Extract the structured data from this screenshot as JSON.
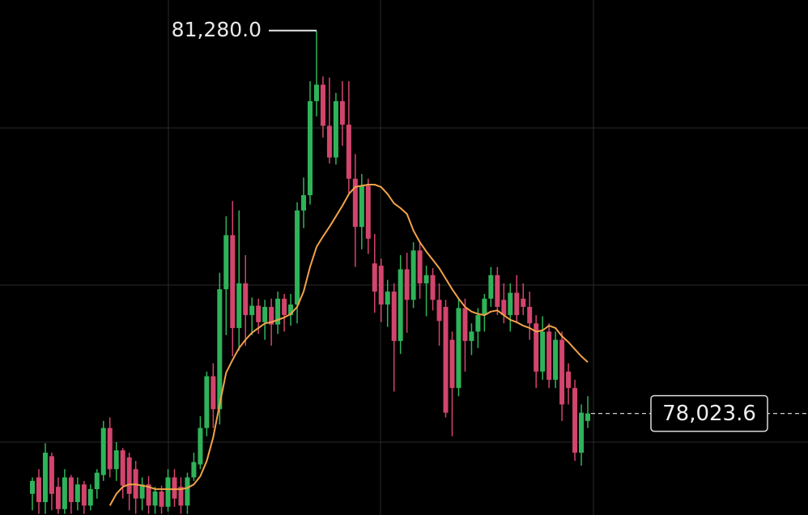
{
  "chart_data": {
    "type": "candlestick",
    "ylim": [
      77160,
      81540
    ],
    "up_color": "#2fb35a",
    "down_color": "#d2456c",
    "open": [
      77340,
      77480,
      77270,
      77660,
      77400,
      77210,
      77480,
      77270,
      77420,
      77240,
      77380,
      77500,
      77900,
      77550,
      77710,
      77650,
      77550,
      77300,
      77420,
      77240,
      77360,
      77230,
      77480,
      77400,
      77240,
      77480,
      77590,
      77900,
      78340,
      78060,
      79080,
      79540,
      78750,
      79130,
      78860,
      78940,
      78800,
      78930,
      78780,
      79000,
      78860,
      78950,
      79750,
      79880,
      80680,
      80820,
      80470,
      80200,
      80680,
      80480,
      80020,
      79610,
      79960,
      79300,
      79280,
      78950,
      79060,
      78640,
      79250,
      78990,
      79410,
      79130,
      79200,
      78990,
      78930,
      78650,
      78240,
      78920,
      78640,
      78720,
      78860,
      79000,
      79200,
      78990,
      78860,
      79050,
      79000,
      78930,
      78790,
      78380,
      78720,
      78310,
      78650,
      78380,
      78240,
      77690,
      77960
    ],
    "high": [
      77480,
      77550,
      77770,
      77690,
      77480,
      77550,
      77500,
      77480,
      77450,
      77420,
      77550,
      77960,
      77990,
      77780,
      77730,
      77690,
      77620,
      77480,
      77490,
      77400,
      77410,
      77550,
      77550,
      77480,
      77520,
      77690,
      78000,
      78380,
      78450,
      79220,
      79700,
      79830,
      79750,
      79370,
      79010,
      79000,
      78990,
      79000,
      79060,
      79040,
      79040,
      79820,
      80030,
      80850,
      81280,
      80890,
      80880,
      80750,
      80850,
      80850,
      80230,
      80060,
      80020,
      79550,
      79340,
      79160,
      79130,
      79370,
      79390,
      79480,
      79480,
      79280,
      79260,
      79130,
      78990,
      78720,
      79000,
      79000,
      78790,
      78920,
      79040,
      79270,
      79270,
      79130,
      79130,
      79200,
      79130,
      79060,
      78860,
      78850,
      78790,
      78720,
      78720,
      78450,
      78310,
      78100,
      78170
    ],
    "low": [
      77200,
      77170,
      77170,
      77200,
      77170,
      77170,
      77170,
      77200,
      77170,
      77200,
      77300,
      77450,
      77480,
      77450,
      77300,
      77200,
      77170,
      77200,
      77170,
      77170,
      77170,
      77190,
      77230,
      77170,
      77170,
      77450,
      77550,
      77830,
      77900,
      77930,
      78690,
      78510,
      78560,
      78600,
      78690,
      78700,
      78650,
      78600,
      78700,
      78720,
      78770,
      78790,
      79600,
      79800,
      80550,
      80370,
      80150,
      80140,
      80300,
      79900,
      79270,
      79420,
      79380,
      78880,
      78800,
      78760,
      78210,
      78530,
      78710,
      78920,
      79000,
      78850,
      78900,
      78600,
      77990,
      77830,
      78170,
      78380,
      78520,
      78580,
      78720,
      78930,
      78860,
      78790,
      78720,
      78790,
      78860,
      78650,
      78240,
      78310,
      78240,
      78240,
      77960,
      78100,
      77620,
      77580,
      77900
    ],
    "close": [
      77450,
      77270,
      77690,
      77340,
      77210,
      77480,
      77270,
      77420,
      77240,
      77380,
      77520,
      77900,
      77550,
      77710,
      77410,
      77340,
      77300,
      77420,
      77240,
      77360,
      77230,
      77480,
      77300,
      77240,
      77480,
      77610,
      77900,
      78340,
      78060,
      79080,
      79540,
      78750,
      79130,
      78860,
      78940,
      78800,
      78930,
      78780,
      79000,
      78860,
      78950,
      79750,
      79880,
      80680,
      80820,
      80470,
      80200,
      80680,
      80480,
      80020,
      79610,
      79960,
      79510,
      79060,
      78950,
      79060,
      78640,
      79250,
      78990,
      79410,
      79130,
      79200,
      78990,
      78810,
      78030,
      78240,
      78920,
      78640,
      78720,
      78860,
      79000,
      79200,
      78930,
      78860,
      79050,
      78860,
      78930,
      78790,
      78380,
      78720,
      78310,
      78650,
      78100,
      78240,
      77690,
      78030,
      78023.6
    ],
    "moving_average": {
      "color": "#f2a24a",
      "values": [
        null,
        null,
        null,
        null,
        null,
        null,
        null,
        null,
        null,
        null,
        null,
        null,
        77240,
        77340,
        77400,
        77420,
        77420,
        77410,
        77400,
        77380,
        77380,
        77380,
        77380,
        77380,
        77390,
        77420,
        77490,
        77620,
        77820,
        78100,
        78370,
        78480,
        78580,
        78650,
        78710,
        78750,
        78790,
        78800,
        78820,
        78840,
        78870,
        78930,
        79060,
        79270,
        79440,
        79530,
        79610,
        79700,
        79790,
        79890,
        79950,
        79960,
        79970,
        79970,
        79950,
        79890,
        79810,
        79770,
        79720,
        79580,
        79480,
        79400,
        79330,
        79260,
        79170,
        79080,
        79000,
        78930,
        78890,
        78870,
        78860,
        78890,
        78900,
        78860,
        78820,
        78800,
        78770,
        78750,
        78720,
        78730,
        78770,
        78750,
        78680,
        78630,
        78570,
        78510,
        78460
      ]
    },
    "annotations": [
      {
        "text": "81,280.0",
        "value": 81280
      },
      {
        "text": "78,023.6",
        "value": 78023.6
      }
    ]
  }
}
